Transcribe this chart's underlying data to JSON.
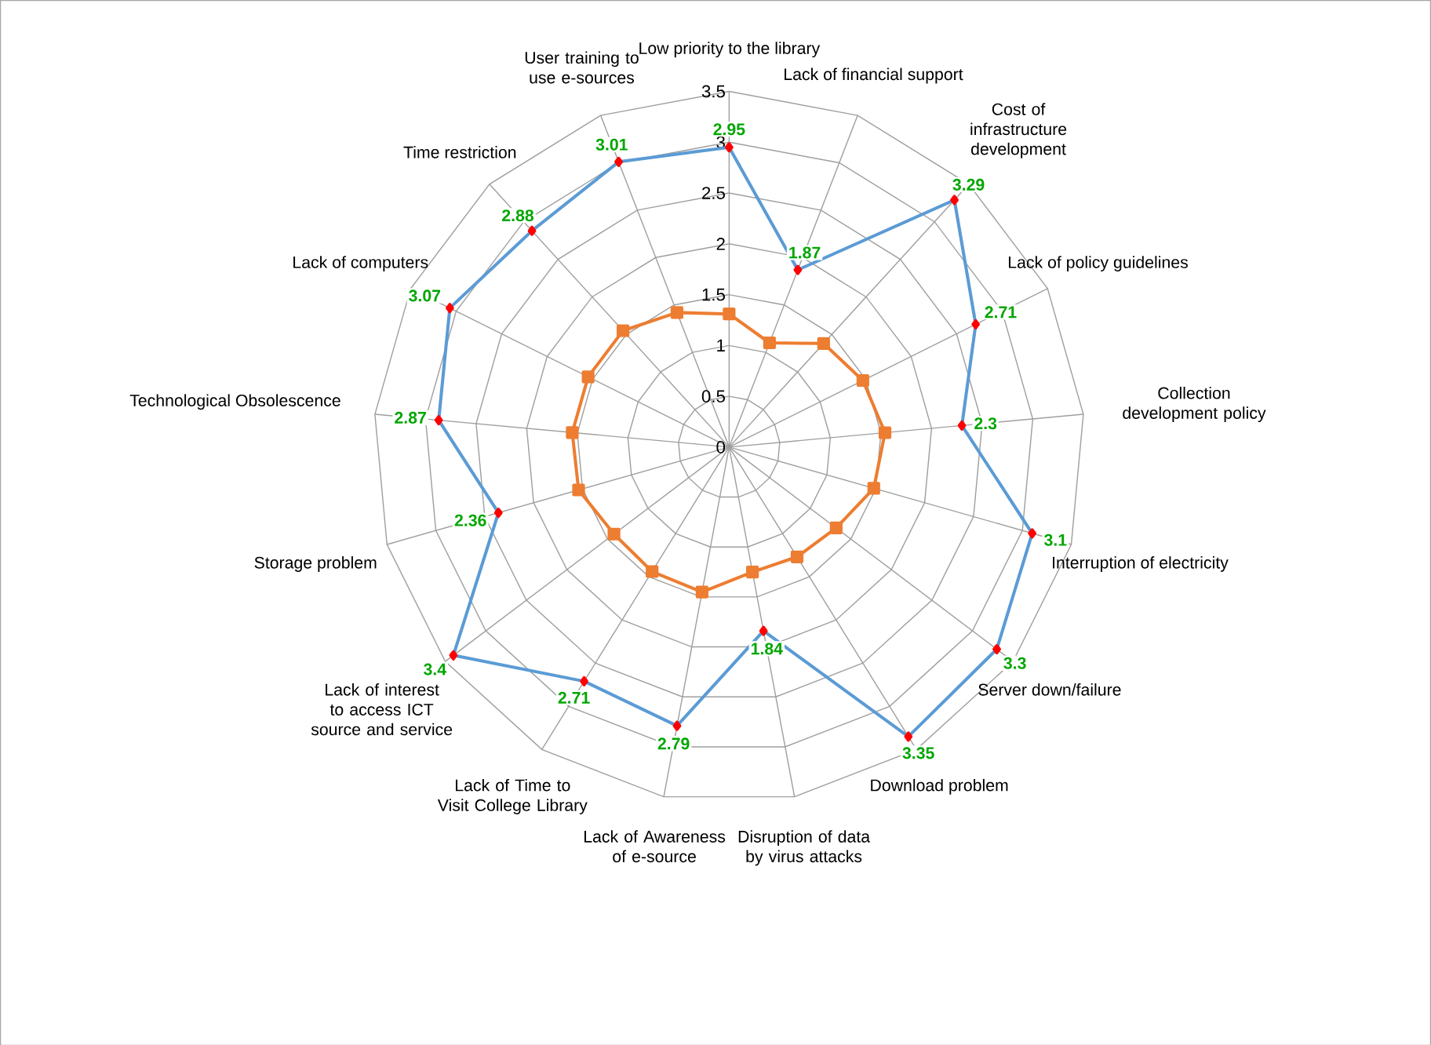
{
  "chart_data": {
    "type": "radar",
    "categories": [
      "Low priority to the library",
      "Lack of financial support",
      "Cost of infrastructure development",
      "Lack of policy guidelines",
      "Collection development policy",
      "Interruption of electricity",
      "Server down/failure",
      "Download problem",
      "Disruption of data by virus attacks",
      "Lack of Awareness of e-source",
      "Lack of Time to Visit College Library",
      "Lack of interest to access ICT source and service",
      "Storage problem",
      "Technological Obsolescence",
      "Lack of computers",
      "Time restriction",
      "User training to use e-sources"
    ],
    "series": [
      {
        "color": "#5b9bd5",
        "marker": "diamond",
        "values": [
          2.95,
          1.87,
          3.29,
          2.71,
          2.3,
          3.1,
          3.3,
          3.35,
          1.84,
          2.79,
          2.71,
          3.4,
          2.36,
          2.87,
          3.07,
          2.88,
          3.01
        ],
        "value_labels": [
          "2.95",
          "1.87",
          "3.29",
          "2.71",
          "2.3",
          "3.1",
          "3.3",
          "3.35",
          "1.84",
          "2.79",
          "2.71",
          "3.4",
          "2.36",
          "2.87",
          "3.07",
          "2.88",
          "3.01"
        ]
      },
      {
        "color": "#ed7d31",
        "marker": "square",
        "values": [
          1.31,
          1.1,
          1.38,
          1.47,
          1.54,
          1.48,
          1.32,
          1.27,
          1.25,
          1.45,
          1.44,
          1.42,
          1.54,
          1.55,
          1.55,
          1.55,
          1.42
        ]
      }
    ],
    "ylim": [
      0,
      3.5
    ],
    "yticks": [
      0,
      0.5,
      1,
      1.5,
      2,
      2.5,
      3,
      3.5
    ],
    "grid": true
  }
}
